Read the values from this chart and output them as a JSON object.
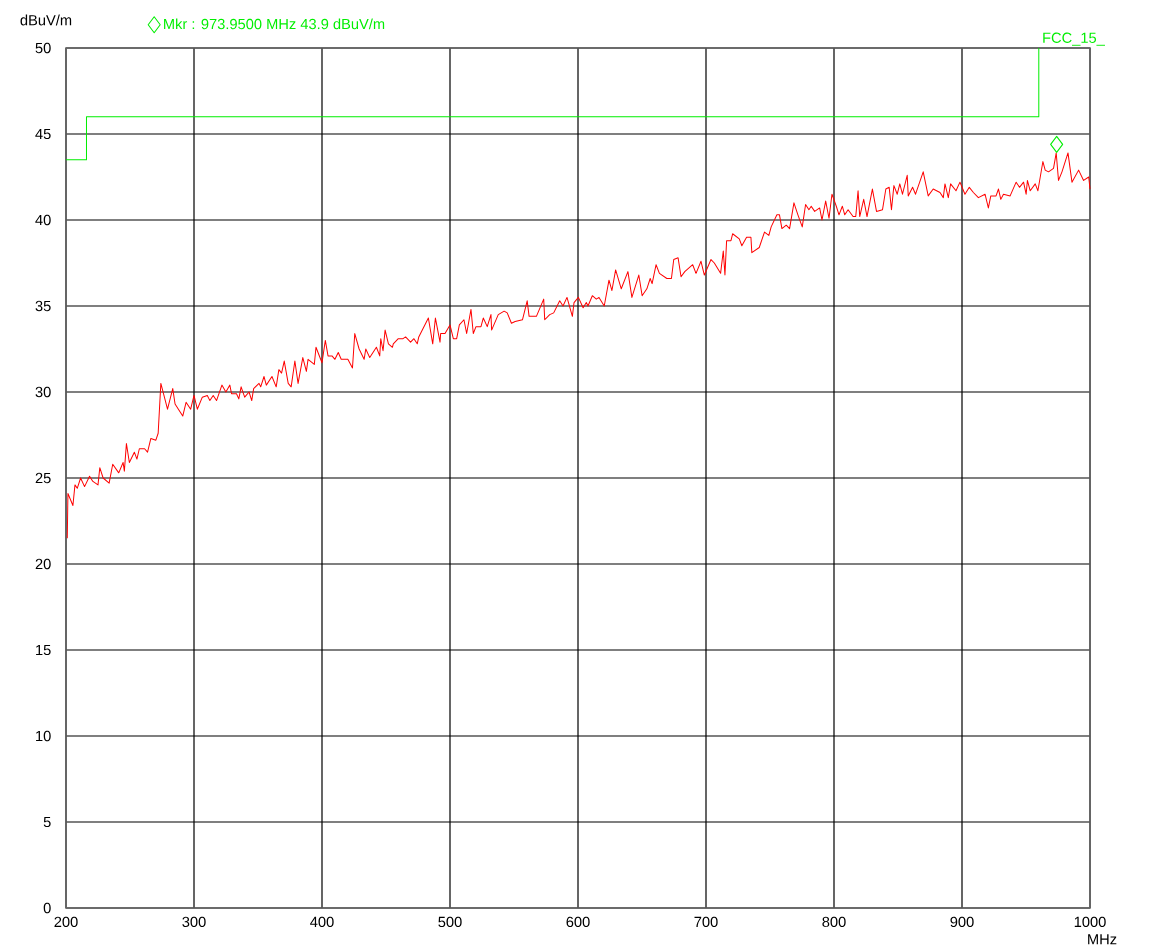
{
  "chart_data": {
    "type": "line",
    "xlabel": "MHz",
    "ylabel": "dBuV/m",
    "xlim": [
      200,
      1000
    ],
    "ylim": [
      0,
      50
    ],
    "xticks": [
      200,
      300,
      400,
      500,
      600,
      700,
      800,
      900,
      1000
    ],
    "yticks": [
      0,
      5,
      10,
      15,
      20,
      25,
      30,
      35,
      40,
      45,
      50
    ],
    "grid": true,
    "legend": "top left",
    "series": [
      {
        "color": "#ff0000",
        "x": [
          201,
          201.5,
          205.4,
          207,
          208.8,
          211.4,
          214.5,
          218.4,
          221,
          225,
          226.4,
          229,
          233.7,
          236.5,
          241.2,
          244.6,
          245.6,
          247.2,
          249.5,
          253.4,
          255.4,
          257.3,
          261.4,
          263.7,
          266.3,
          270.2,
          272,
          274.1,
          279.3,
          283.4,
          285.2,
          287.8,
          291.2,
          293.8,
          297.4,
          300,
          302.6,
          306.5,
          310.4,
          312.4,
          315,
          317.6,
          321.8,
          324.9,
          328,
          329.3,
          333.2,
          335,
          336.8,
          339.6,
          343,
          345.1,
          346.6,
          350.8,
          352.1,
          354.7,
          356.5,
          360.9,
          364.2,
          366.3,
          368.4,
          370.5,
          373.6,
          375.9,
          378.8,
          381.3,
          385,
          387.8,
          389.1,
          394,
          395.3,
          400,
          402.6,
          404.7,
          407.8,
          410.1,
          412.7,
          415,
          420.2,
          423.8,
          425.6,
          429,
          432.9,
          434.2,
          437.3,
          442.5,
          445.1,
          445.9,
          447.7,
          449.3,
          451.9,
          455,
          455.7,
          459.6,
          463.3,
          465.3,
          469.2,
          471.8,
          474.4,
          475.6,
          483.1,
          486.5,
          488.6,
          492.2,
          492.7,
          496.1,
          500,
          502.6,
          505.2,
          507.3,
          510.9,
          513,
          516.4,
          518.2,
          520.3,
          524.2,
          526,
          529.1,
          532,
          532.5,
          537.7,
          542.3,
          544.7,
          548,
          550.9,
          556.6,
          560.3,
          561.8,
          567.5,
          573.2,
          574,
          577.9,
          581,
          585.7,
          588.3,
          591.4,
          595.6,
          596.9,
          600.3,
          604,
          606.5,
          607.8,
          611.2,
          614.3,
          616.4,
          620.5,
          624.2,
          626.5,
          629.4,
          633.8,
          639,
          642.1,
          647.5,
          650.1,
          653.8,
          656.4,
          657.9,
          661,
          663.6,
          669.4,
          673,
          674.8,
          678.2,
          680.5,
          683.4,
          689.6,
          692.2,
          696.1,
          698.7,
          703.9,
          706.5,
          711.4,
          713.5,
          714.8,
          716.1,
          719.5,
          720.8,
          726,
          728,
          731.7,
          735.1,
          735.8,
          741.6,
          745.7,
          749.1,
          750.9,
          755.4,
          757.4,
          759.3,
          762.7,
          765.3,
          768.7,
          771.8,
          775.2,
          777.8,
          780.4,
          782.2,
          784.9,
          788.8,
          790.6,
          793.5,
          796.1,
          798.4,
          801.8,
          803.9,
          806.5,
          808.4,
          811,
          814.9,
          817,
          818.8,
          820.1,
          823.2,
          825.8,
          830,
          833.2,
          837.9,
          840.5,
          843.1,
          844.9,
          846.8,
          849.4,
          851.4,
          853.5,
          857.2,
          858,
          861.4,
          863.7,
          869.7,
          873.6,
          877.5,
          882.8,
          885.4,
          886.7,
          889.3,
          891.1,
          895.3,
          898.4,
          902.3,
          905.7,
          908.9,
          912.8,
          918,
          920.6,
          922.5,
          926.6,
          928.5,
          930.3,
          932.4,
          937.6,
          942.3,
          944.9,
          948.1,
          950.1,
          951.1,
          953.3,
          957.2,
          959.3,
          963.2,
          965,
          967.6,
          971.5,
          973.6,
          975.4,
          978.1,
          982.8,
          985.9,
          991.1,
          995,
          999,
          1000
        ],
        "values": [
          21.5,
          24.1,
          23.4,
          24.6,
          24.4,
          25.0,
          24.5,
          25.1,
          24.8,
          24.6,
          25.6,
          25.0,
          24.7,
          25.8,
          25.3,
          25.9,
          25.4,
          27.0,
          25.9,
          26.5,
          26.1,
          26.7,
          26.7,
          26.5,
          27.3,
          27.2,
          27.6,
          30.5,
          29.0,
          30.2,
          29.3,
          29.0,
          28.6,
          29.4,
          29.0,
          29.8,
          29.0,
          29.7,
          29.8,
          29.5,
          29.8,
          29.5,
          30.4,
          30.0,
          30.4,
          29.9,
          29.9,
          29.6,
          30.3,
          29.7,
          30.0,
          29.5,
          30.2,
          30.5,
          30.3,
          30.9,
          30.4,
          30.9,
          30.3,
          31.3,
          31.1,
          31.8,
          30.5,
          30.3,
          31.8,
          30.5,
          32.0,
          31.2,
          31.9,
          31.6,
          32.6,
          31.7,
          33.0,
          32.1,
          32.1,
          31.9,
          32.3,
          31.9,
          31.9,
          31.4,
          33.4,
          32.5,
          31.9,
          32.5,
          32.0,
          32.6,
          32.1,
          33.1,
          32.4,
          33.6,
          32.8,
          32.6,
          32.8,
          33.1,
          33.1,
          33.2,
          32.9,
          33.1,
          32.8,
          33.2,
          34.3,
          32.8,
          34.3,
          32.9,
          33.4,
          33.4,
          33.9,
          33.1,
          33.1,
          33.9,
          34.2,
          33.4,
          34.8,
          33.4,
          33.8,
          33.8,
          34.3,
          33.8,
          34.5,
          33.6,
          34.5,
          34.7,
          34.6,
          34.0,
          34.1,
          34.2,
          35.3,
          34.4,
          34.4,
          35.4,
          34.2,
          34.5,
          34.6,
          35.3,
          35.0,
          35.5,
          34.4,
          35.2,
          35.5,
          34.9,
          35.2,
          35.0,
          35.6,
          35.4,
          35.5,
          35.0,
          36.5,
          35.9,
          37.1,
          36.0,
          37.0,
          35.5,
          36.8,
          35.6,
          36.0,
          36.6,
          36.3,
          37.4,
          36.9,
          36.6,
          36.6,
          37.7,
          37.8,
          36.7,
          37.0,
          37.4,
          36.9,
          37.6,
          36.8,
          37.7,
          37.5,
          36.9,
          38.2,
          36.8,
          38.8,
          38.8,
          39.2,
          38.9,
          38.5,
          39.0,
          39.0,
          38.1,
          38.4,
          39.3,
          39.1,
          39.6,
          40.3,
          40.3,
          39.5,
          39.7,
          39.5,
          41.0,
          40.3,
          39.6,
          40.9,
          40.6,
          40.8,
          40.5,
          40.7,
          40.0,
          41.1,
          40.1,
          41.5,
          40.8,
          40.3,
          40.8,
          40.3,
          40.6,
          40.2,
          40.2,
          41.7,
          40.2,
          41.2,
          40.2,
          41.8,
          40.5,
          40.6,
          41.8,
          41.9,
          40.6,
          42.0,
          41.5,
          42.1,
          41.5,
          42.6,
          41.4,
          41.9,
          41.5,
          42.8,
          41.4,
          41.8,
          41.6,
          41.3,
          42.1,
          41.3,
          42.1,
          41.7,
          42.2,
          41.5,
          41.9,
          41.6,
          41.3,
          41.5,
          40.7,
          41.4,
          41.4,
          41.8,
          41.2,
          41.5,
          41.4,
          42.2,
          41.9,
          42.2,
          41.5,
          42.3,
          41.7,
          42.1,
          41.7,
          43.4,
          42.9,
          42.8,
          43.0,
          43.9,
          42.3,
          42.8,
          43.9,
          42.2,
          42.9,
          42.3,
          42.5,
          41.8
        ]
      },
      {
        "type": "step",
        "name": "FCC_15_",
        "color": "#00ee00",
        "x": [
          200,
          216,
          960
        ],
        "values": [
          43.5,
          46,
          50
        ]
      },
      {
        "type": "scatter",
        "name": "Mkr : 973.9500 MHz 43.9 dBuV/m",
        "color": "#00ee00",
        "marker": "diamond",
        "x": [
          973.95
        ],
        "values": [
          44.4
        ]
      }
    ]
  }
}
